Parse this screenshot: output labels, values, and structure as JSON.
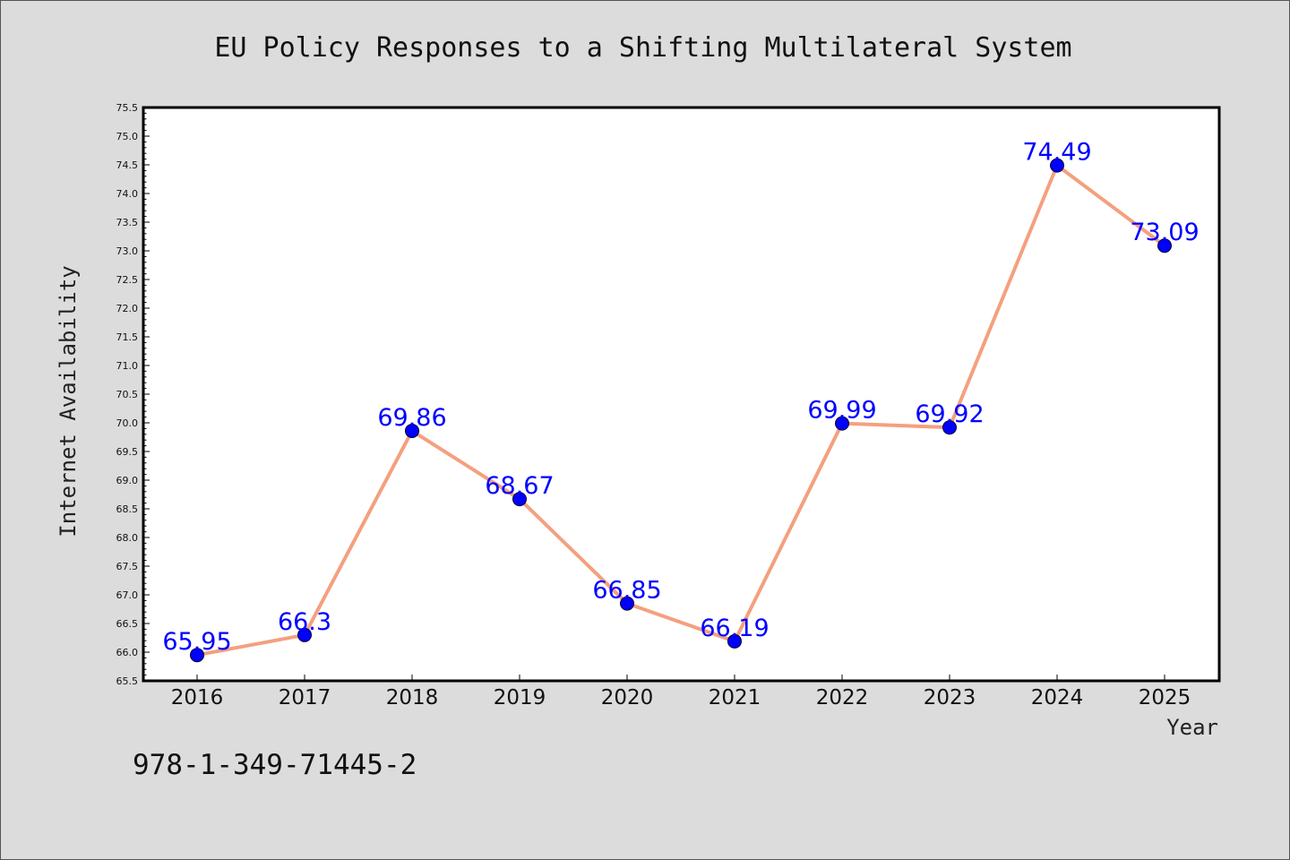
{
  "chart_data": {
    "type": "line",
    "title": "EU Policy Responses to a Shifting Multilateral System",
    "xlabel": "Year",
    "ylabel": "Internet Availability",
    "x": [
      "2016",
      "2017",
      "2018",
      "2019",
      "2020",
      "2021",
      "2022",
      "2023",
      "2024",
      "2025"
    ],
    "values": [
      65.95,
      66.3,
      69.86,
      68.67,
      66.85,
      66.19,
      69.99,
      69.92,
      74.49,
      73.09
    ],
    "data_labels": [
      "65.95",
      "66.3",
      "69.86",
      "68.67",
      "66.85",
      "66.19",
      "69.99",
      "69.92",
      "74.49",
      "73.09"
    ],
    "ylim": [
      65.5,
      75.5
    ],
    "ytick_step": 0.5,
    "grid": false,
    "line_color": "#f4a07f",
    "marker_color": "#0000ff",
    "label_color": "#0000ff"
  },
  "annotation": {
    "isbn": "978-1-349-71445-2"
  }
}
